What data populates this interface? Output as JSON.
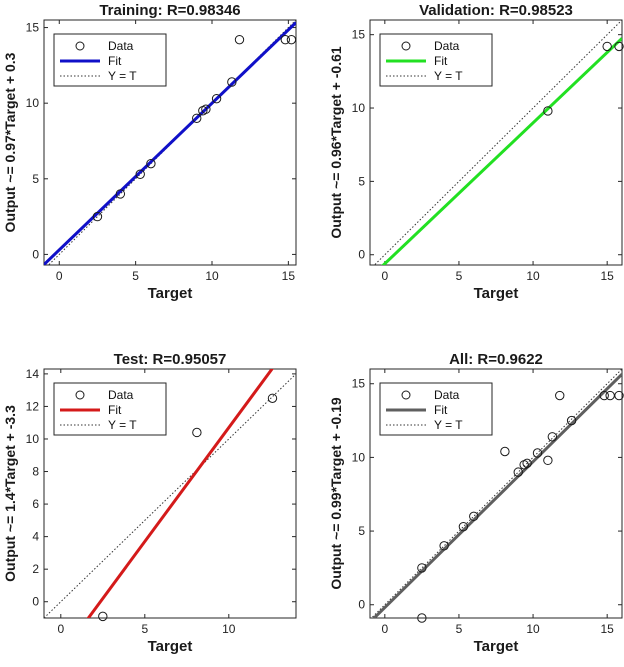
{
  "chart_data": [
    {
      "type": "scatter",
      "title": "Training: R=0.98346",
      "xlabel": "Target",
      "ylabel": "Output ~= 0.97*Target + 0.3",
      "xlim": [
        -1,
        15.5
      ],
      "ylim": [
        -0.7,
        15.5
      ],
      "xticks": [
        0,
        5,
        10,
        15
      ],
      "yticks": [
        0,
        5,
        10,
        15
      ],
      "fit": {
        "slope": 0.97,
        "intercept": 0.3,
        "color": "#1010c8"
      },
      "legend": {
        "placement": "top-left",
        "entries": [
          "Data",
          "Fit",
          "Y = T"
        ]
      },
      "points": [
        {
          "x": 2.5,
          "y": 2.5
        },
        {
          "x": 4.0,
          "y": 4.0
        },
        {
          "x": 5.3,
          "y": 5.3
        },
        {
          "x": 6.0,
          "y": 6.0
        },
        {
          "x": 9.0,
          "y": 9.0
        },
        {
          "x": 9.4,
          "y": 9.5
        },
        {
          "x": 9.6,
          "y": 9.6
        },
        {
          "x": 10.3,
          "y": 10.3
        },
        {
          "x": 11.3,
          "y": 11.4
        },
        {
          "x": 11.8,
          "y": 14.2
        },
        {
          "x": 14.8,
          "y": 14.2
        },
        {
          "x": 15.2,
          "y": 14.2
        }
      ]
    },
    {
      "type": "scatter",
      "title": "Validation: R=0.98523",
      "xlabel": "Target",
      "ylabel": "Output ~= 0.96*Target + -0.61",
      "xlim": [
        -1,
        16
      ],
      "ylim": [
        -0.7,
        16
      ],
      "xticks": [
        0,
        5,
        10,
        15
      ],
      "yticks": [
        0,
        5,
        10,
        15
      ],
      "fit": {
        "slope": 0.96,
        "intercept": -0.61,
        "color": "#22e022"
      },
      "legend": {
        "placement": "top-left",
        "entries": [
          "Data",
          "Fit",
          "Y = T"
        ]
      },
      "points": [
        {
          "x": 11.0,
          "y": 9.8
        },
        {
          "x": 15.0,
          "y": 14.2
        },
        {
          "x": 15.8,
          "y": 14.2
        }
      ]
    },
    {
      "type": "scatter",
      "title": "Test: R=0.95057",
      "xlabel": "Target",
      "ylabel": "Output ~= 1.4*Target + -3.3",
      "xlim": [
        -1,
        14
      ],
      "ylim": [
        -1,
        14.3
      ],
      "xticks": [
        0,
        5,
        10
      ],
      "yticks": [
        0,
        2,
        4,
        6,
        8,
        10,
        12,
        14
      ],
      "fit": {
        "slope": 1.4,
        "intercept": -3.3,
        "color": "#d41a1a"
      },
      "legend": {
        "placement": "top-left",
        "entries": [
          "Data",
          "Fit",
          "Y = T"
        ]
      },
      "points": [
        {
          "x": 2.5,
          "y": -0.9
        },
        {
          "x": 8.1,
          "y": 10.4
        },
        {
          "x": 12.6,
          "y": 12.5
        }
      ]
    },
    {
      "type": "scatter",
      "title": "All: R=0.9622",
      "xlabel": "Target",
      "ylabel": "Output ~= 0.99*Target + -0.19",
      "xlim": [
        -1,
        16
      ],
      "ylim": [
        -0.9,
        16
      ],
      "xticks": [
        0,
        5,
        10,
        15
      ],
      "yticks": [
        0,
        5,
        10,
        15
      ],
      "fit": {
        "slope": 0.99,
        "intercept": -0.19,
        "color": "#5f5f5f"
      },
      "legend": {
        "placement": "top-left",
        "entries": [
          "Data",
          "Fit",
          "Y = T"
        ]
      },
      "points": [
        {
          "x": 2.5,
          "y": 2.5
        },
        {
          "x": 2.5,
          "y": -0.9
        },
        {
          "x": 4.0,
          "y": 4.0
        },
        {
          "x": 5.3,
          "y": 5.3
        },
        {
          "x": 6.0,
          "y": 6.0
        },
        {
          "x": 8.1,
          "y": 10.4
        },
        {
          "x": 9.0,
          "y": 9.0
        },
        {
          "x": 9.4,
          "y": 9.5
        },
        {
          "x": 9.6,
          "y": 9.6
        },
        {
          "x": 10.3,
          "y": 10.3
        },
        {
          "x": 11.0,
          "y": 9.8
        },
        {
          "x": 11.3,
          "y": 11.4
        },
        {
          "x": 11.8,
          "y": 14.2
        },
        {
          "x": 12.6,
          "y": 12.5
        },
        {
          "x": 14.8,
          "y": 14.2
        },
        {
          "x": 15.2,
          "y": 14.2
        },
        {
          "x": 15.8,
          "y": 14.2
        }
      ]
    }
  ]
}
